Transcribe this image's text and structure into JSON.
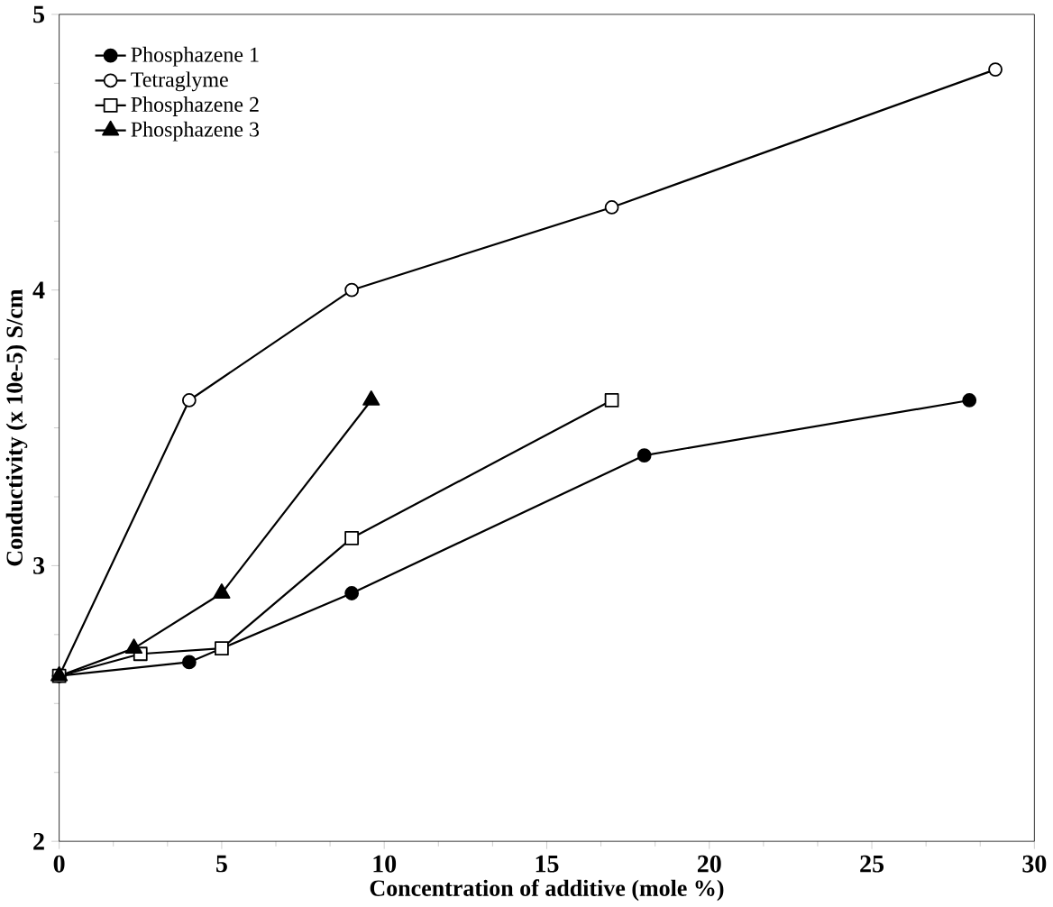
{
  "chart_data": {
    "type": "line",
    "xlabel": "Concentration of additive (mole %)",
    "ylabel": "Conductivity (x 10e-5) S/cm",
    "xlim": [
      0,
      30
    ],
    "ylim": [
      2,
      5
    ],
    "xticks": [
      0,
      5,
      10,
      15,
      20,
      25,
      30
    ],
    "yticks": [
      2,
      3,
      4,
      5
    ],
    "legend": "top left",
    "grid": false,
    "line_style": "solid",
    "series": [
      {
        "name": "Phosphazene 1",
        "color": "#000000",
        "marker": "circle",
        "x": [
          0,
          4,
          9,
          18,
          28
        ],
        "values": [
          2.6,
          2.65,
          2.9,
          3.4,
          3.6
        ]
      },
      {
        "name": "Tetraglyme",
        "color": "#000000",
        "marker": "circle",
        "x": [
          0,
          4,
          9,
          17,
          28.8
        ],
        "values": [
          2.6,
          3.6,
          4.0,
          4.3,
          4.8
        ]
      },
      {
        "name": "Phosphazene 2",
        "color": "#000000",
        "marker": "square",
        "x": [
          0,
          2.5,
          5,
          9,
          17
        ],
        "values": [
          2.6,
          2.68,
          2.7,
          3.1,
          3.6
        ]
      },
      {
        "name": "Phosphazene 3",
        "color": "#000000",
        "marker": "triangle",
        "x": [
          0,
          2.3,
          5,
          9.6
        ],
        "values": [
          2.6,
          2.7,
          2.9,
          3.6
        ]
      }
    ]
  }
}
